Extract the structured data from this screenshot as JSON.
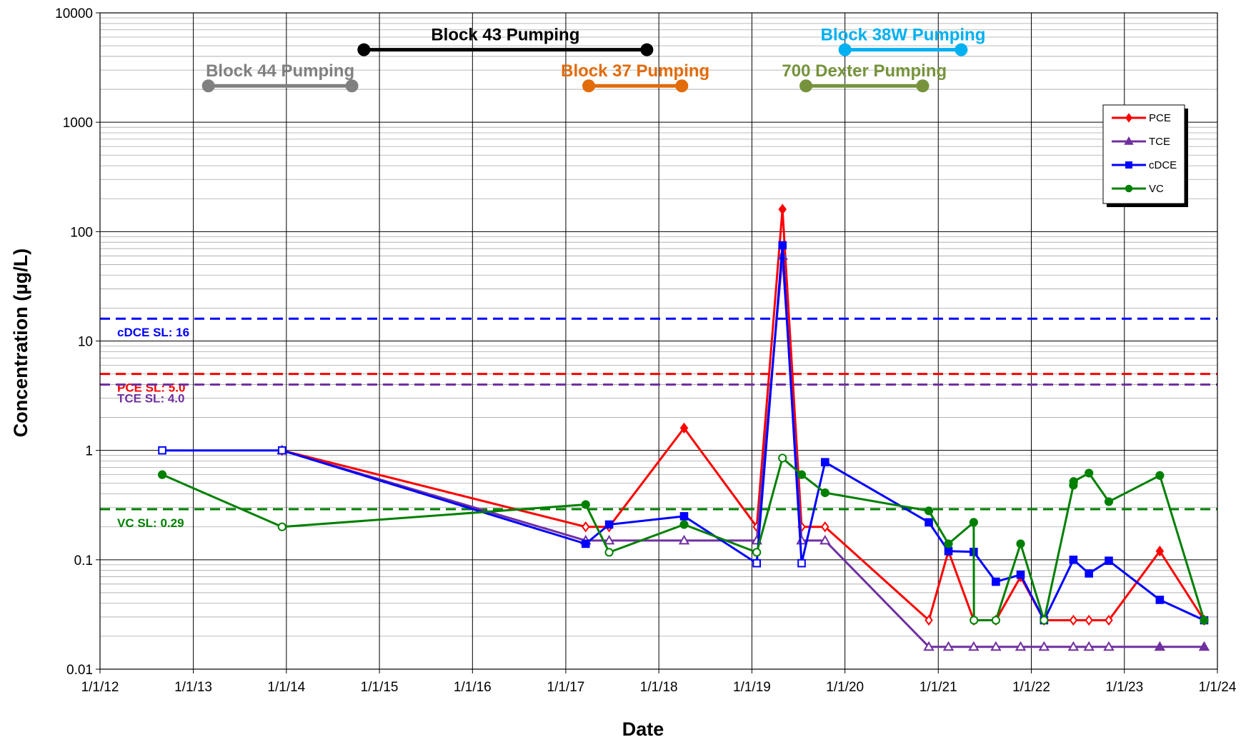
{
  "chart_data": {
    "type": "line",
    "title": "",
    "xlabel": "Date",
    "ylabel": "Concentration (µg/L)",
    "y_scale": "log",
    "ylim": [
      0.01,
      10000
    ],
    "y_ticks": [
      "0.01",
      "0.1",
      "1",
      "10",
      "100",
      "1000",
      "10000"
    ],
    "xlim": [
      "2012-01-01",
      "2024-01-01"
    ],
    "x_ticks": [
      "1/1/12",
      "1/1/13",
      "1/1/14",
      "1/1/15",
      "1/1/16",
      "1/1/17",
      "1/1/18",
      "1/1/19",
      "1/1/20",
      "1/1/21",
      "1/1/22",
      "1/1/23",
      "1/1/24"
    ],
    "grid": true,
    "legend_position": "top-right",
    "series": [
      {
        "name": "PCE",
        "color": "#ff0000",
        "marker": "diamond",
        "points": [
          {
            "date": "2013-12-15",
            "value": 1.0,
            "detected": false
          },
          {
            "date": "2017-03-20",
            "value": 0.2,
            "detected": false
          },
          {
            "date": "2017-06-20",
            "value": 0.2,
            "detected": false
          },
          {
            "date": "2018-04-10",
            "value": 1.6,
            "detected": true
          },
          {
            "date": "2019-01-20",
            "value": 0.2,
            "detected": false
          },
          {
            "date": "2019-05-01",
            "value": 160,
            "detected": true
          },
          {
            "date": "2019-07-15",
            "value": 0.2,
            "detected": false
          },
          {
            "date": "2019-10-15",
            "value": 0.2,
            "detected": false
          },
          {
            "date": "2020-11-25",
            "value": 0.028,
            "detected": false
          },
          {
            "date": "2021-02-10",
            "value": 0.12,
            "detected": true
          },
          {
            "date": "2021-05-20",
            "value": 0.028,
            "detected": false
          },
          {
            "date": "2021-08-15",
            "value": 0.028,
            "detected": false
          },
          {
            "date": "2021-11-20",
            "value": 0.07,
            "detected": true
          },
          {
            "date": "2022-02-20",
            "value": 0.028,
            "detected": false
          },
          {
            "date": "2022-06-15",
            "value": 0.028,
            "detected": false
          },
          {
            "date": "2022-08-15",
            "value": 0.028,
            "detected": false
          },
          {
            "date": "2022-11-01",
            "value": 0.028,
            "detected": false
          },
          {
            "date": "2023-05-20",
            "value": 0.12,
            "detected": true
          },
          {
            "date": "2023-11-10",
            "value": 0.028,
            "detected": true
          }
        ]
      },
      {
        "name": "TCE",
        "color": "#7030a0",
        "marker": "triangle",
        "points": [
          {
            "date": "2013-12-15",
            "value": 1.0,
            "detected": false
          },
          {
            "date": "2017-03-20",
            "value": 0.15,
            "detected": false
          },
          {
            "date": "2017-06-20",
            "value": 0.15,
            "detected": false
          },
          {
            "date": "2018-04-10",
            "value": 0.15,
            "detected": false
          },
          {
            "date": "2019-01-20",
            "value": 0.15,
            "detected": false
          },
          {
            "date": "2019-05-01",
            "value": 60,
            "detected": true
          },
          {
            "date": "2019-07-15",
            "value": 0.15,
            "detected": false
          },
          {
            "date": "2019-10-15",
            "value": 0.15,
            "detected": false
          },
          {
            "date": "2020-11-25",
            "value": 0.016,
            "detected": false
          },
          {
            "date": "2021-02-10",
            "value": 0.016,
            "detected": false
          },
          {
            "date": "2021-05-20",
            "value": 0.016,
            "detected": false
          },
          {
            "date": "2021-08-15",
            "value": 0.016,
            "detected": false
          },
          {
            "date": "2021-11-20",
            "value": 0.016,
            "detected": false
          },
          {
            "date": "2022-02-20",
            "value": 0.016,
            "detected": false
          },
          {
            "date": "2022-06-15",
            "value": 0.016,
            "detected": false
          },
          {
            "date": "2022-08-15",
            "value": 0.016,
            "detected": false
          },
          {
            "date": "2022-11-01",
            "value": 0.016,
            "detected": false
          },
          {
            "date": "2023-05-20",
            "value": 0.016,
            "detected": true
          },
          {
            "date": "2023-11-10",
            "value": 0.016,
            "detected": true
          }
        ]
      },
      {
        "name": "cDCE",
        "color": "#0000ff",
        "marker": "square",
        "points": [
          {
            "date": "2012-09-01",
            "value": 1.0,
            "detected": false
          },
          {
            "date": "2013-12-15",
            "value": 1.0,
            "detected": false
          },
          {
            "date": "2017-03-20",
            "value": 0.14,
            "detected": true
          },
          {
            "date": "2017-06-20",
            "value": 0.21,
            "detected": true
          },
          {
            "date": "2018-04-10",
            "value": 0.25,
            "detected": true
          },
          {
            "date": "2019-01-20",
            "value": 0.093,
            "detected": false
          },
          {
            "date": "2019-05-01",
            "value": 75,
            "detected": true
          },
          {
            "date": "2019-07-15",
            "value": 0.093,
            "detected": false
          },
          {
            "date": "2019-10-15",
            "value": 0.78,
            "detected": true
          },
          {
            "date": "2020-11-25",
            "value": 0.22,
            "detected": true
          },
          {
            "date": "2021-02-10",
            "value": 0.12,
            "detected": true
          },
          {
            "date": "2021-05-20",
            "value": 0.118,
            "detected": true
          },
          {
            "date": "2021-08-15",
            "value": 0.063,
            "detected": true
          },
          {
            "date": "2021-11-20",
            "value": 0.073,
            "detected": true
          },
          {
            "date": "2022-02-20",
            "value": 0.028,
            "detected": false
          },
          {
            "date": "2022-06-15",
            "value": 0.1,
            "detected": true
          },
          {
            "date": "2022-08-15",
            "value": 0.075,
            "detected": true
          },
          {
            "date": "2022-11-01",
            "value": 0.098,
            "detected": true
          },
          {
            "date": "2023-05-20",
            "value": 0.043,
            "detected": true
          },
          {
            "date": "2023-11-10",
            "value": 0.028,
            "detected": true
          }
        ]
      },
      {
        "name": "VC",
        "color": "#008000",
        "marker": "circle",
        "points": [
          {
            "date": "2012-09-01",
            "value": 0.6,
            "detected": true
          },
          {
            "date": "2013-12-15",
            "value": 0.2,
            "detected": false
          },
          {
            "date": "2017-03-20",
            "value": 0.32,
            "detected": true
          },
          {
            "date": "2017-06-20",
            "value": 0.117,
            "detected": false
          },
          {
            "date": "2018-04-10",
            "value": 0.21,
            "detected": true
          },
          {
            "date": "2019-01-20",
            "value": 0.117,
            "detected": false
          },
          {
            "date": "2019-05-01",
            "value": 0.85,
            "detected": false
          },
          {
            "date": "2019-07-15",
            "value": 0.6,
            "detected": true
          },
          {
            "date": "2019-10-15",
            "value": 0.41,
            "detected": true
          },
          {
            "date": "2020-11-25",
            "value": 0.28,
            "detected": true
          },
          {
            "date": "2021-02-10",
            "value": 0.14,
            "detected": true
          },
          {
            "date": "2021-05-20",
            "value": 0.22,
            "detected": true
          },
          {
            "date": "2021-05-21",
            "value": 0.028,
            "detected": false
          },
          {
            "date": "2021-08-15",
            "value": 0.028,
            "detected": false
          },
          {
            "date": "2021-11-20",
            "value": 0.14,
            "detected": true
          },
          {
            "date": "2022-02-20",
            "value": 0.028,
            "detected": false
          },
          {
            "date": "2022-06-15",
            "value": 0.48,
            "detected": true
          },
          {
            "date": "2022-06-16",
            "value": 0.52,
            "detected": true
          },
          {
            "date": "2022-08-15",
            "value": 0.62,
            "detected": true
          },
          {
            "date": "2022-11-01",
            "value": 0.34,
            "detected": true
          },
          {
            "date": "2023-05-20",
            "value": 0.59,
            "detected": true
          },
          {
            "date": "2023-11-10",
            "value": 0.028,
            "detected": true
          }
        ]
      }
    ],
    "screening_levels": [
      {
        "label": "cDCE SL: 16",
        "value": 16,
        "color": "#0000ff"
      },
      {
        "label": "PCE SL: 5.0",
        "value": 5.0,
        "color": "#ff0000"
      },
      {
        "label": "TCE SL: 4.0",
        "value": 4.0,
        "color": "#7030a0"
      },
      {
        "label": "VC SL: 0.29",
        "value": 0.29,
        "color": "#008000"
      }
    ],
    "pumping_periods": [
      {
        "label": "Block 44 Pumping",
        "start": "2013-03-01",
        "end": "2014-09-15",
        "color": "#808080",
        "level": 2150
      },
      {
        "label": "Block 43 Pumping",
        "start": "2014-11-01",
        "end": "2017-11-15",
        "color": "#000000",
        "level": 4600
      },
      {
        "label": "Block 37 Pumping",
        "start": "2017-04-01",
        "end": "2018-04-01",
        "color": "#e26b0a",
        "level": 2150
      },
      {
        "label": "700 Dexter Pumping",
        "start": "2019-08-01",
        "end": "2020-11-01",
        "color": "#76933c",
        "level": 2150
      },
      {
        "label": "Block 38W Pumping",
        "start": "2020-01-01",
        "end": "2021-04-01",
        "color": "#00b0f0",
        "level": 4600
      }
    ]
  }
}
